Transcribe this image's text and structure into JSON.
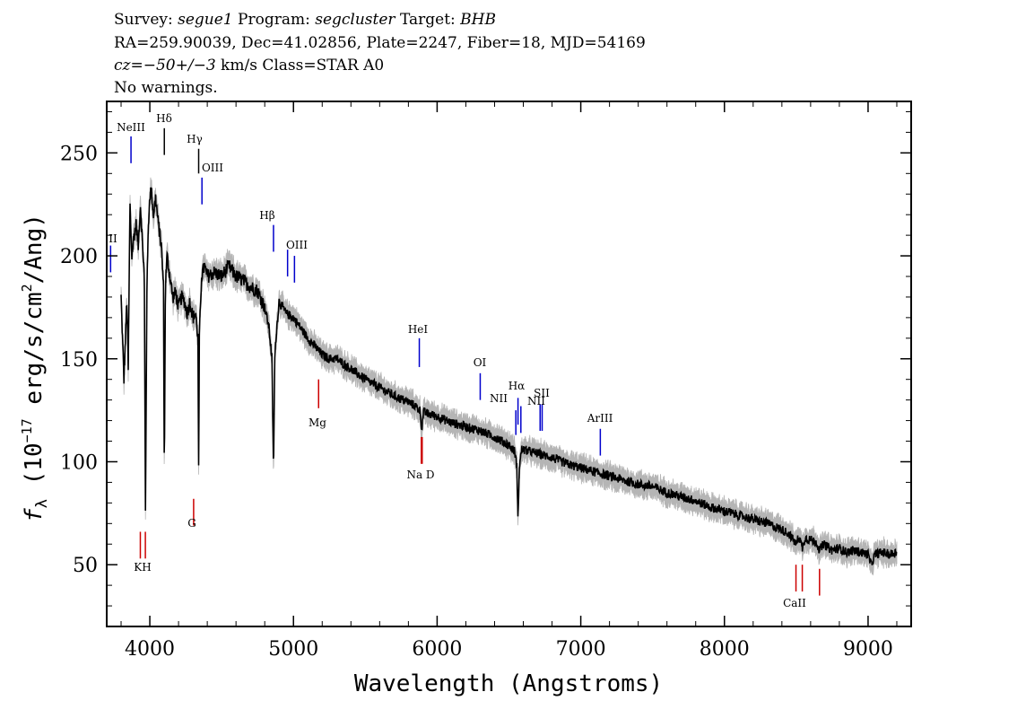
{
  "header": {
    "survey_label": "Survey:",
    "survey": "segue1",
    "program_label": "Program:",
    "program": "segcluster",
    "target_label": "Target:",
    "target": "BHB",
    "line2": "RA=259.90039, Dec=41.02856, Plate=2247, Fiber=18, MJD=54169",
    "cz_label": "cz=",
    "cz_value": "−50+/−3",
    "cz_rest": " km/s Class=STAR A0",
    "line4": "No warnings."
  },
  "chart_data": {
    "type": "line",
    "xlabel": "Wavelength (Angstroms)",
    "ylabel_parts": {
      "f": "f",
      "sub": "λ",
      "pre": " (10",
      "exp": "−17",
      "mid": " erg/s/cm",
      "exp2": "2",
      "post": "/Ang)"
    },
    "xlim": [
      3700,
      9300
    ],
    "ylim": [
      20,
      275
    ],
    "xticks": [
      4000,
      5000,
      6000,
      7000,
      8000,
      9000
    ],
    "yticks": [
      50,
      100,
      150,
      200,
      250
    ],
    "colors": {
      "spectrum": "#000000",
      "error_band": "#b5b5b5",
      "emission": "#0000cc",
      "absorption": "#cc0000",
      "marker_black": "#000000"
    },
    "series": [
      {
        "x": [
          3800,
          3820,
          3840,
          3850,
          3862,
          3875,
          3890,
          3905,
          3920,
          3935,
          3950,
          3962,
          3970,
          3980,
          3990,
          4000,
          4010,
          4025,
          4040,
          4060,
          4080,
          4095,
          4101,
          4108,
          4120,
          4140,
          4160,
          4180,
          4200,
          4220,
          4240,
          4260,
          4280,
          4300,
          4320,
          4335,
          4340,
          4345,
          4360,
          4380,
          4400,
          4450,
          4500,
          4550,
          4600,
          4650,
          4700,
          4750,
          4800,
          4830,
          4850,
          4861,
          4870,
          4880,
          4900,
          4950,
          5000,
          5050,
          5100,
          5150,
          5200,
          5250,
          5300,
          5400,
          5500,
          5600,
          5700,
          5800,
          5850,
          5880,
          5893,
          5905,
          5950,
          6000,
          6100,
          6200,
          6300,
          6400,
          6500,
          6540,
          6555,
          6563,
          6572,
          6590,
          6650,
          6700,
          6800,
          6900,
          7000,
          7100,
          7200,
          7300,
          7400,
          7500,
          7600,
          7700,
          7800,
          7900,
          8000,
          8100,
          8200,
          8300,
          8400,
          8450,
          8498,
          8520,
          8542,
          8560,
          8600,
          8640,
          8662,
          8690,
          8750,
          8800,
          8850,
          8900,
          8950,
          9000,
          9020,
          9050,
          9100,
          9150,
          9200
        ],
        "y": [
          180,
          140,
          178,
          145,
          225,
          200,
          210,
          215,
          205,
          225,
          205,
          190,
          75,
          185,
          215,
          230,
          232,
          220,
          228,
          215,
          205,
          185,
          90,
          185,
          200,
          190,
          180,
          182,
          175,
          180,
          178,
          172,
          178,
          170,
          172,
          160,
          95,
          160,
          190,
          195,
          190,
          192,
          190,
          195,
          190,
          188,
          185,
          183,
          175,
          165,
          150,
          95,
          150,
          162,
          178,
          172,
          170,
          165,
          160,
          156,
          152,
          150,
          150,
          145,
          140,
          136,
          132,
          129,
          127,
          125,
          116,
          124,
          123,
          122,
          119,
          117,
          115,
          112,
          108,
          105,
          98,
          70,
          98,
          106,
          105,
          104,
          102,
          99,
          97,
          95,
          93,
          91,
          89,
          88,
          85,
          83,
          81,
          78,
          76,
          74,
          72,
          70,
          67,
          65,
          60,
          64,
          58,
          63,
          62,
          61,
          57,
          60,
          57,
          58,
          56,
          57,
          56,
          55,
          50,
          55,
          56,
          55,
          56
        ]
      }
    ],
    "emission_lines": [
      {
        "label": "OII",
        "wave": 3727
      },
      {
        "label": "NeIII",
        "wave": 3869
      },
      {
        "label": "OIII",
        "wave": 4363
      },
      {
        "label": "Hβ",
        "wave": 4861
      },
      {
        "label": "OIII",
        "wave": 4959
      },
      {
        "label": "OIII",
        "wave": 5007
      },
      {
        "label": "HeI",
        "wave": 5876
      },
      {
        "label": "OI",
        "wave": 6300
      },
      {
        "label": "NII",
        "wave": 6548
      },
      {
        "label": "Hα",
        "wave": 6563
      },
      {
        "label": "NII",
        "wave": 6583
      },
      {
        "label": "SII",
        "wave": 6717
      },
      {
        "label": "SII",
        "wave": 6731
      },
      {
        "label": "ArIII",
        "wave": 7136
      }
    ],
    "balmer_lines": [
      {
        "label": "Hδ",
        "wave": 4101
      },
      {
        "label": "Hγ",
        "wave": 4340
      }
    ],
    "absorption_lines": [
      {
        "label": "K",
        "wave": 3934
      },
      {
        "label": "H",
        "wave": 3969
      },
      {
        "label": "G",
        "wave": 4305
      },
      {
        "label": "Mg",
        "wave": 5175
      },
      {
        "label": "Na",
        "wave": 5890
      },
      {
        "label": "D",
        "wave": 5896
      },
      {
        "label": "CaII",
        "wave": 8498
      },
      {
        "label": "CaII",
        "wave": 8542
      },
      {
        "label": "CaII",
        "wave": 8662
      }
    ]
  }
}
